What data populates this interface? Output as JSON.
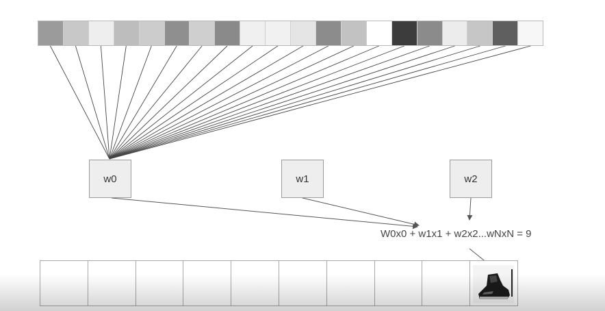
{
  "input_pixels": {
    "colors": [
      "#9b9b9b",
      "#c8c8c8",
      "#eeeeee",
      "#bdbdbd",
      "#cccccc",
      "#8f8f8f",
      "#cfcfcf",
      "#8a8a8a",
      "#f0f0f0",
      "#f1f1f1",
      "#e5e5e5",
      "#8c8c8c",
      "#c2c2c2",
      "#ffffff",
      "#3c3c3c",
      "#8b8b8b",
      "#ececec",
      "#c6c6c6",
      "#5f5f5f",
      "#f7f7f7"
    ]
  },
  "weights": [
    {
      "label": "w0"
    },
    {
      "label": "w1"
    },
    {
      "label": "w2"
    }
  ],
  "formula": "W0x0 + w1x1 + w2x2...wNxN = 9",
  "output": {
    "cell_count": 10,
    "highlighted_index": 9,
    "highlighted_icon": "boot-icon"
  }
}
